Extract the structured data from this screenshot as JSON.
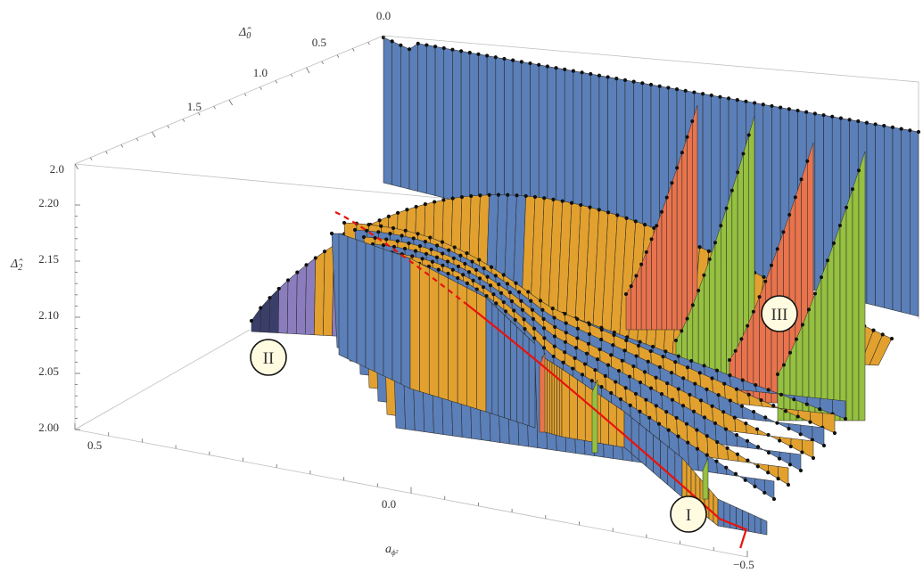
{
  "chart_data": {
    "type": "surface3d",
    "title": "",
    "axes": {
      "x": {
        "label": "a_{ϕ²}",
        "label_main": "a",
        "label_sub": "ϕ²",
        "range": [
          -0.5,
          0.5
        ],
        "ticks": [
          {
            "value": 0.5,
            "label": "0.5"
          },
          {
            "value": 0.0,
            "label": "0.0"
          },
          {
            "value": -0.5,
            "label": "−0.5"
          }
        ]
      },
      "y": {
        "label": "Δ̂₀",
        "label_main": "Δ̂",
        "label_sub": "0",
        "range": [
          0.0,
          2.0
        ],
        "ticks": [
          {
            "value": 0.0,
            "label": "0.0"
          },
          {
            "value": 0.5,
            "label": "0.5"
          },
          {
            "value": 1.0,
            "label": "1.0"
          },
          {
            "value": 1.5,
            "label": "1.5"
          },
          {
            "value": 2.0,
            "label": "2.0"
          }
        ]
      },
      "z": {
        "label": "Δ̂₂",
        "label_main": "Δ̂",
        "label_sub": "2",
        "range": [
          2.0,
          2.2
        ],
        "ticks": [
          {
            "value": 2.0,
            "label": "2.00"
          },
          {
            "value": 2.05,
            "label": "2.05"
          },
          {
            "value": 2.1,
            "label": "2.10"
          },
          {
            "value": 2.15,
            "label": "2.15"
          },
          {
            "value": 2.2,
            "label": "2.20"
          }
        ]
      }
    },
    "regions": [
      {
        "id": "I",
        "label": "I"
      },
      {
        "id": "II",
        "label": "II"
      },
      {
        "id": "III",
        "label": "III"
      }
    ],
    "series": [
      {
        "color": "#5b7fb8",
        "z_top": 2.22,
        "note_points": [
          [
            0.5,
            0.0
          ],
          [
            -0.5,
            0.0
          ]
        ]
      },
      {
        "color": "#e2a12e",
        "z_top": 2.15
      },
      {
        "color": "#e8734c"
      },
      {
        "color": "#95c040"
      },
      {
        "color": "#8b7dbd"
      }
    ],
    "overlay_curve_color": "#e8120c",
    "grid": false,
    "legend": "none"
  }
}
